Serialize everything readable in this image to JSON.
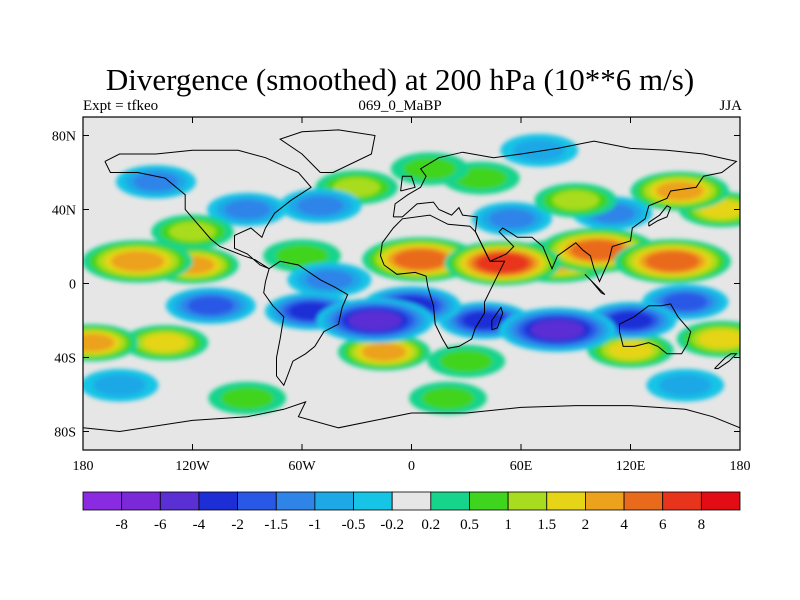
{
  "title": "Divergence (smoothed) at 200 hPa (10**6 m/s)",
  "left_string": "Expt = tfkeo",
  "center_string": "069_0_MaBP",
  "right_string": "JJA",
  "chart_data": {
    "type": "heatmap",
    "projection": "cylindrical-equidistant",
    "xlim": [
      -180,
      180
    ],
    "ylim": [
      -90,
      90
    ],
    "x_ticks": [
      {
        "value": -180,
        "label": "180"
      },
      {
        "value": -120,
        "label": "120W"
      },
      {
        "value": -60,
        "label": "60W"
      },
      {
        "value": 0,
        "label": "0"
      },
      {
        "value": 60,
        "label": "60E"
      },
      {
        "value": 120,
        "label": "120E"
      },
      {
        "value": 180,
        "label": "180"
      }
    ],
    "y_ticks": [
      {
        "value": 80,
        "label": "80N"
      },
      {
        "value": 40,
        "label": "40N"
      },
      {
        "value": 0,
        "label": "0"
      },
      {
        "value": -40,
        "label": "40S"
      },
      {
        "value": -80,
        "label": "80S"
      }
    ],
    "colorbar": {
      "labels": [
        "-8",
        "-6",
        "-4",
        "-2",
        "-1.5",
        "-1",
        "-0.5",
        "-0.2",
        "0.2",
        "0.5",
        "1",
        "1.5",
        "2",
        "4",
        "6",
        "8"
      ],
      "colors": [
        "#8a2be2",
        "#7a28d8",
        "#5a2fd4",
        "#1e2ed6",
        "#2a58e6",
        "#2f84e8",
        "#1ea8e6",
        "#16c4e6",
        "#e6e6e6",
        "#16d48c",
        "#3fd41e",
        "#a8dc1e",
        "#e6d416",
        "#eca21c",
        "#ea6a1c",
        "#e8341c",
        "#e40c14"
      ]
    },
    "features": [
      {
        "lon": -150,
        "lat": 12,
        "value": 3.5
      },
      {
        "lon": -120,
        "lat": 10,
        "value": 2.0
      },
      {
        "lon": -175,
        "lat": -32,
        "value": 2.0
      },
      {
        "lon": -135,
        "lat": -32,
        "value": 1.5
      },
      {
        "lon": -120,
        "lat": 28,
        "value": 1.2
      },
      {
        "lon": -60,
        "lat": 15,
        "value": 0.8
      },
      {
        "lon": -45,
        "lat": 2,
        "value": -1.3
      },
      {
        "lon": 5,
        "lat": 13,
        "value": 4.5
      },
      {
        "lon": 50,
        "lat": 11,
        "value": 6.5
      },
      {
        "lon": 80,
        "lat": 12,
        "value": 3.5
      },
      {
        "lon": 102,
        "lat": 18,
        "value": 4.0
      },
      {
        "lon": 143,
        "lat": 12,
        "value": 4.0
      },
      {
        "lon": 147,
        "lat": 50,
        "value": 2.5
      },
      {
        "lon": 170,
        "lat": 40,
        "value": 1.5
      },
      {
        "lon": 90,
        "lat": 45,
        "value": 1.2
      },
      {
        "lon": 38,
        "lat": 57,
        "value": 0.8
      },
      {
        "lon": -30,
        "lat": 52,
        "value": 1.2
      },
      {
        "lon": 10,
        "lat": 62,
        "value": 0.8
      },
      {
        "lon": -15,
        "lat": -37,
        "value": 2.0
      },
      {
        "lon": 30,
        "lat": -42,
        "value": 0.8
      },
      {
        "lon": 120,
        "lat": -36,
        "value": 1.5
      },
      {
        "lon": 170,
        "lat": -30,
        "value": 1.8
      },
      {
        "lon": -90,
        "lat": -62,
        "value": 0.8
      },
      {
        "lon": 20,
        "lat": -62,
        "value": 0.8
      },
      {
        "lon": -20,
        "lat": -20,
        "value": -4.5
      },
      {
        "lon": -55,
        "lat": -15,
        "value": -2.0
      },
      {
        "lon": -110,
        "lat": -12,
        "value": -1.8
      },
      {
        "lon": 0,
        "lat": -12,
        "value": -2.5
      },
      {
        "lon": 40,
        "lat": -20,
        "value": -2.0
      },
      {
        "lon": 80,
        "lat": -25,
        "value": -4.0
      },
      {
        "lon": 120,
        "lat": -20,
        "value": -2.0
      },
      {
        "lon": 150,
        "lat": -10,
        "value": -1.5
      },
      {
        "lon": -140,
        "lat": 55,
        "value": -1.0
      },
      {
        "lon": -90,
        "lat": 40,
        "value": -1.0
      },
      {
        "lon": -50,
        "lat": 42,
        "value": -1.2
      },
      {
        "lon": 55,
        "lat": 35,
        "value": -1.0
      },
      {
        "lon": 110,
        "lat": 38,
        "value": -1.0
      },
      {
        "lon": 70,
        "lat": 72,
        "value": -0.8
      },
      {
        "lon": -160,
        "lat": -55,
        "value": -0.8
      },
      {
        "lon": 150,
        "lat": -55,
        "value": -0.8
      }
    ]
  }
}
